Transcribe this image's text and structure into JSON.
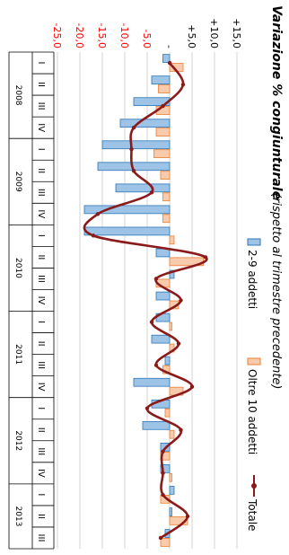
{
  "chart_data": {
    "type": "bar",
    "title": "Variazione % congiunturale",
    "subtitle": "(rispetto al trimestre precedente)",
    "orientation": "rotated-90-clockwise",
    "grid": true,
    "legend": "top",
    "ylim": [
      -25,
      15
    ],
    "yticks": [
      {
        "label": "+15,0",
        "value": 15,
        "color": "#000000"
      },
      {
        "label": "+10,0",
        "value": 10,
        "color": "#000000"
      },
      {
        "label": "+5,0",
        "value": 5,
        "color": "#000000"
      },
      {
        "label": "-",
        "value": 0,
        "color": "#000000"
      },
      {
        "label": "-5,0",
        "value": -5,
        "color": "#ff0000"
      },
      {
        "label": "-10,0",
        "value": -10,
        "color": "#ff0000"
      },
      {
        "label": "-15,0",
        "value": -15,
        "color": "#ff0000"
      },
      {
        "label": "-20,0",
        "value": -20,
        "color": "#ff0000"
      },
      {
        "label": "-25,0",
        "value": -25,
        "color": "#ff0000"
      }
    ],
    "categories": [
      "I",
      "II",
      "III",
      "IV",
      "I",
      "II",
      "III",
      "IV",
      "I",
      "II",
      "III",
      "IV",
      "I",
      "II",
      "III",
      "IV",
      "I",
      "II",
      "III",
      "IV",
      "I",
      "II",
      "III"
    ],
    "years": [
      {
        "label": "2008",
        "quarters": 4
      },
      {
        "label": "2009",
        "quarters": 4
      },
      {
        "label": "2010",
        "quarters": 4
      },
      {
        "label": "2011",
        "quarters": 4
      },
      {
        "label": "2012",
        "quarters": 4
      },
      {
        "label": "2013",
        "quarters": 3
      }
    ],
    "series": [
      {
        "name": "2-9 addetti",
        "kind": "bar",
        "color": "#9dc3e6",
        "stroke": "#2e75b6",
        "values": [
          -1.5,
          -4,
          -8,
          -11,
          -15,
          -16,
          -12,
          -19,
          -19,
          -3,
          1,
          -3,
          -3,
          -4,
          -1,
          -8,
          -4,
          -6,
          -2,
          -2,
          1,
          0.5,
          -1
        ]
      },
      {
        "name": "Oltre 10 addetti",
        "kind": "bar",
        "color": "#f8cbad",
        "stroke": "#ed7d31",
        "values": [
          3,
          -2.5,
          -3,
          -3,
          -3.5,
          -2,
          -1.5,
          -1.5,
          1,
          7.5,
          -3,
          2,
          0.5,
          1,
          -1.5,
          3,
          -1,
          1,
          -2,
          0.5,
          -2,
          4,
          -2
        ]
      },
      {
        "name": "Totale",
        "kind": "line",
        "color": "#8b1a1a",
        "values": [
          0,
          3,
          -1.5,
          -8,
          -8.5,
          -8,
          -4,
          -16,
          -17,
          8,
          -3,
          2.5,
          -4,
          2,
          -3,
          5,
          -5,
          2.5,
          -1.5,
          -1.5,
          -1.5,
          4,
          -2
        ]
      }
    ]
  }
}
